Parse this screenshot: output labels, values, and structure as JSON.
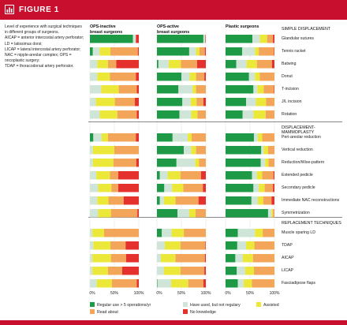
{
  "figure": {
    "label": "FIGURE 1",
    "caption": "Level of experience with surgical techniques in different groups of surgeons.\nAICAP = anterior intercostal artery perforator; LD = latissimus dorsi;\nLICAP = lateral intercostal artery perforator; NAC = nipple-areolar complex; OPS = oncoplastic surgery;\nTDAP = thoracodorsal artery perforator."
  },
  "colors": {
    "brand": "#c8102e",
    "regular": "#1e9a46",
    "not_regular": "#cfe5d8",
    "assisted": "#ece83a",
    "read_about": "#f3a55a",
    "no_knowledge": "#e5312d"
  },
  "chart_data": {
    "type": "bar",
    "orientation": "horizontal-stacked-percent",
    "xlim": [
      0,
      100
    ],
    "x_ticks": [
      "0%",
      "50%",
      "100%"
    ],
    "groups": [
      {
        "name": "OPS-inactive\nbreast surgeons"
      },
      {
        "name": "OPS-active\nbreast surgeons"
      },
      {
        "name": "Plastic surgeons"
      }
    ],
    "legend": [
      {
        "key": "regular",
        "label": "Regular use > 5 operations/yr"
      },
      {
        "key": "not_regular",
        "label": "Have used, but not regulary"
      },
      {
        "key": "assisted",
        "label": "Assisted"
      },
      {
        "key": "read_about",
        "label": "Read about"
      },
      {
        "key": "no_knowledge",
        "label": "No knowledge"
      }
    ],
    "sections": [
      {
        "title": "SIMPLE DISPLACEMENT",
        "rows": [
          {
            "label": "Glandular sutures",
            "values": [
              [
                88,
                6,
                0,
                0,
                6
              ],
              [
                95,
                4,
                0,
                0,
                1
              ],
              [
                55,
                15,
                15,
                12,
                3
              ]
            ]
          },
          {
            "label": "Tennis racket",
            "values": [
              [
                6,
                14,
                22,
                56,
                2
              ],
              [
                66,
                14,
                7,
                11,
                2
              ],
              [
                34,
                26,
                8,
                31,
                1
              ]
            ]
          },
          {
            "label": "Batwing",
            "values": [
              [
                0,
                15,
                22,
                17,
                46
              ],
              [
                3,
                21,
                25,
                33,
                18
              ],
              [
                22,
                21,
                21,
                31,
                5
              ]
            ]
          },
          {
            "label": "Donut",
            "values": [
              [
                0,
                15,
                26,
                53,
                6
              ],
              [
                50,
                17,
                13,
                17,
                3
              ],
              [
                48,
                12,
                10,
                30,
                0
              ]
            ]
          },
          {
            "label": "T-incision",
            "values": [
              [
                0,
                23,
                36,
                37,
                4
              ],
              [
                44,
                29,
                7,
                20,
                0
              ],
              [
                57,
                8,
                13,
                21,
                1
              ]
            ]
          },
          {
            "label": "J/L incision",
            "values": [
              [
                0,
                12,
                39,
                41,
                8
              ],
              [
                52,
                17,
                12,
                14,
                5
              ],
              [
                42,
                20,
                21,
                17,
                0
              ]
            ]
          },
          {
            "label": "Rotation",
            "values": [
              [
                0,
                20,
                36,
                40,
                4
              ],
              [
                46,
                24,
                13,
                17,
                0
              ],
              [
                35,
                22,
                25,
                18,
                0
              ]
            ]
          }
        ]
      },
      {
        "title": "DISPLACEMENT-MAMMOPLASTY",
        "rows": [
          {
            "label": "Peri-areolar reduction",
            "values": [
              [
                7,
                17,
                13,
                57,
                6
              ],
              [
                32,
                31,
                8,
                29,
                0
              ],
              [
                58,
                8,
                9,
                25,
                0
              ]
            ]
          },
          {
            "label": "Vertical reduction",
            "values": [
              [
                0,
                6,
                44,
                50,
                0
              ],
              [
                55,
                15,
                10,
                20,
                0
              ],
              [
                73,
                5,
                9,
                13,
                0
              ]
            ]
          },
          {
            "label": "Reduction/Wise-pattern",
            "values": [
              [
                0,
                6,
                42,
                47,
                5
              ],
              [
                40,
                38,
                8,
                14,
                0
              ],
              [
                72,
                9,
                7,
                12,
                0
              ]
            ]
          },
          {
            "label": "Extended pedicle",
            "values": [
              [
                0,
                13,
                28,
                17,
                42
              ],
              [
                6,
                16,
                26,
                42,
                10
              ],
              [
                54,
                10,
                11,
                23,
                2
              ]
            ]
          },
          {
            "label": "Secondary pedicle",
            "values": [
              [
                0,
                17,
                27,
                14,
                42
              ],
              [
                15,
                16,
                23,
                40,
                6
              ],
              [
                57,
                11,
                12,
                17,
                3
              ]
            ]
          },
          {
            "label": "Immediate NAC reconstructions",
            "values": [
              [
                0,
                15,
                23,
                31,
                31
              ],
              [
                6,
                8,
                24,
                47,
                15
              ],
              [
                53,
                13,
                11,
                17,
                6
              ]
            ]
          },
          {
            "label": "Symmetrization",
            "values": [
              [
                0,
                17,
                26,
                54,
                3
              ],
              [
                42,
                24,
                13,
                21,
                0
              ],
              [
                87,
                7,
                3,
                3,
                0
              ]
            ]
          }
        ]
      },
      {
        "title": "REPLACEMENT TECHNIQUES",
        "rows": [
          {
            "label": "Muscle sparing LD",
            "values": [
              [
                0,
                5,
                24,
                71,
                0
              ],
              [
                10,
                20,
                25,
                45,
                0
              ],
              [
                25,
                35,
                16,
                24,
                0
              ]
            ]
          },
          {
            "label": "TDAP",
            "values": [
              [
                0,
                7,
                35,
                31,
                27
              ],
              [
                0,
                16,
                32,
                51,
                1
              ],
              [
                24,
                18,
                17,
                41,
                0
              ]
            ]
          },
          {
            "label": "AICAP",
            "values": [
              [
                0,
                5,
                38,
                31,
                26
              ],
              [
                0,
                8,
                30,
                60,
                2
              ],
              [
                20,
                15,
                21,
                44,
                0
              ]
            ]
          },
          {
            "label": "LICAP",
            "values": [
              [
                0,
                5,
                32,
                29,
                34
              ],
              [
                0,
                14,
                34,
                49,
                3
              ],
              [
                23,
                17,
                18,
                42,
                0
              ]
            ]
          },
          {
            "label": "Fasciadipose flaps",
            "values": [
              [
                0,
                14,
                31,
                51,
                4
              ],
              [
                1,
                28,
                35,
                31,
                5
              ],
              [
                25,
                12,
                17,
                46,
                0
              ]
            ]
          }
        ]
      }
    ]
  }
}
